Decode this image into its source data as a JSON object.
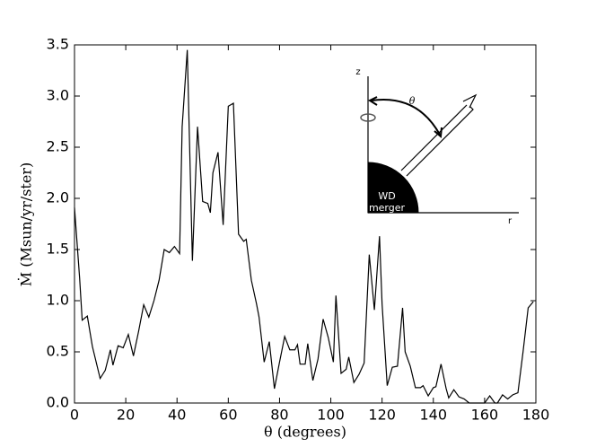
{
  "chart_data": {
    "type": "line",
    "xlabel": "θ (degrees)",
    "ylabel": "Ṁ (Msun/yr/ster)",
    "x": [
      0,
      2,
      3,
      5,
      7,
      10,
      12,
      14,
      15,
      17,
      19,
      21,
      23,
      25,
      27,
      29,
      31,
      33,
      35,
      37,
      39,
      41,
      42,
      44,
      46,
      48,
      50,
      52,
      53,
      54,
      56,
      58,
      60,
      62,
      64,
      66,
      67,
      69,
      71,
      72,
      74,
      76,
      78,
      80,
      82,
      84,
      86,
      87,
      88,
      90,
      91,
      93,
      95,
      97,
      99,
      101,
      102,
      104,
      106,
      107,
      109,
      111,
      113,
      115,
      117,
      119,
      120,
      122,
      124,
      126,
      128,
      129,
      131,
      133,
      135,
      136,
      138,
      140,
      141,
      143,
      145,
      146,
      148,
      150,
      152,
      154,
      156,
      158,
      160,
      162,
      164,
      165,
      167,
      169,
      171,
      173,
      175,
      177,
      179
    ],
    "series": [
      {
        "name": "Mdot",
        "color": "#000000",
        "values": [
          1.91,
          1.22,
          0.81,
          0.85,
          0.55,
          0.24,
          0.32,
          0.52,
          0.37,
          0.56,
          0.54,
          0.67,
          0.46,
          0.7,
          0.96,
          0.84,
          1.0,
          1.2,
          1.5,
          1.47,
          1.53,
          1.46,
          2.7,
          3.45,
          1.39,
          2.7,
          1.97,
          1.95,
          1.86,
          2.25,
          2.45,
          1.74,
          2.9,
          2.93,
          1.65,
          1.58,
          1.6,
          1.2,
          0.97,
          0.84,
          0.4,
          0.6,
          0.14,
          0.4,
          0.65,
          0.52,
          0.52,
          0.57,
          0.38,
          0.38,
          0.58,
          0.22,
          0.43,
          0.82,
          0.64,
          0.4,
          1.05,
          0.29,
          0.33,
          0.45,
          0.2,
          0.28,
          0.39,
          1.45,
          0.91,
          1.63,
          0.97,
          0.17,
          0.35,
          0.36,
          0.93,
          0.5,
          0.36,
          0.15,
          0.15,
          0.17,
          0.07,
          0.15,
          0.16,
          0.38,
          0.14,
          0.05,
          0.13,
          0.06,
          0.04,
          0.0,
          0.0,
          0.0,
          0.0,
          0.07,
          0.0,
          0.0,
          0.08,
          0.04,
          0.08,
          0.1,
          0.5,
          0.93,
          0.99
        ]
      }
    ],
    "xlim": [
      0,
      180
    ],
    "xticks": [
      0,
      20,
      40,
      60,
      80,
      100,
      120,
      140,
      160,
      180
    ],
    "ylim": [
      0,
      3.5
    ],
    "yticks": [
      {
        "value": 0,
        "label": "0.0"
      },
      0.5,
      {
        "value": 1,
        "label": "1.0"
      },
      1.5,
      {
        "value": 2,
        "label": "2.0"
      },
      2.5,
      {
        "value": 3,
        "label": "3.0"
      },
      3.5
    ],
    "grid": false,
    "inset_labels": {
      "z_axis": "z",
      "angle": "θ",
      "r_axis": "r",
      "body_line1": "WD",
      "body_line2": "merger"
    }
  }
}
